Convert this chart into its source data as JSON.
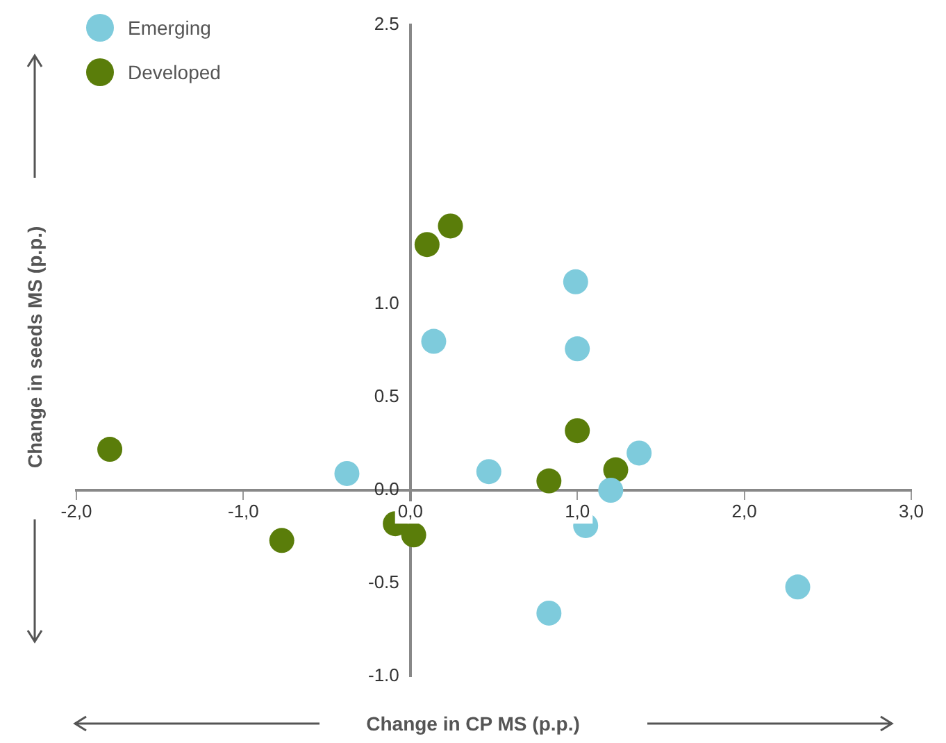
{
  "chart_data": {
    "type": "scatter",
    "xlabel": "Change in CP MS (p.p.)",
    "ylabel": "Change in seeds MS (p.p.)",
    "xlim": [
      -2,
      3
    ],
    "xticks": [
      {
        "value": -2,
        "label": "-2,0"
      },
      {
        "value": -1,
        "label": "-1,0"
      },
      {
        "value": 0,
        "label": "0,0"
      },
      {
        "value": 1,
        "label": "1,0"
      },
      {
        "value": 2,
        "label": "2,0"
      },
      {
        "value": 3,
        "label": "3,0"
      }
    ],
    "ylim": [
      -1,
      2.5
    ],
    "yticks": [
      {
        "value": -1,
        "label": "-1.0"
      },
      -0.5,
      {
        "value": 0,
        "label": "0.0"
      },
      0.5,
      {
        "value": 1,
        "label": "1.0"
      },
      2.5
    ],
    "legend": "top left",
    "marker": "circle",
    "series": [
      {
        "name": "Emerging",
        "color": "#7ecbdc",
        "x": [
          0.99,
          0.14,
          1.0,
          1.37,
          -0.38,
          0.47,
          1.2,
          1.05,
          0.83,
          2.32
        ],
        "values": [
          1.12,
          0.8,
          0.76,
          0.2,
          0.09,
          0.1,
          0.0,
          -0.19,
          -0.66,
          -0.52
        ]
      },
      {
        "name": "Developed",
        "color": "#5a7d0a",
        "x": [
          0.24,
          0.1,
          1.0,
          1.23,
          0.83,
          -1.8,
          -0.77,
          -0.09,
          0.02
        ],
        "values": [
          1.42,
          1.32,
          0.32,
          0.11,
          0.05,
          0.22,
          -0.27,
          -0.18,
          -0.24
        ]
      }
    ]
  }
}
